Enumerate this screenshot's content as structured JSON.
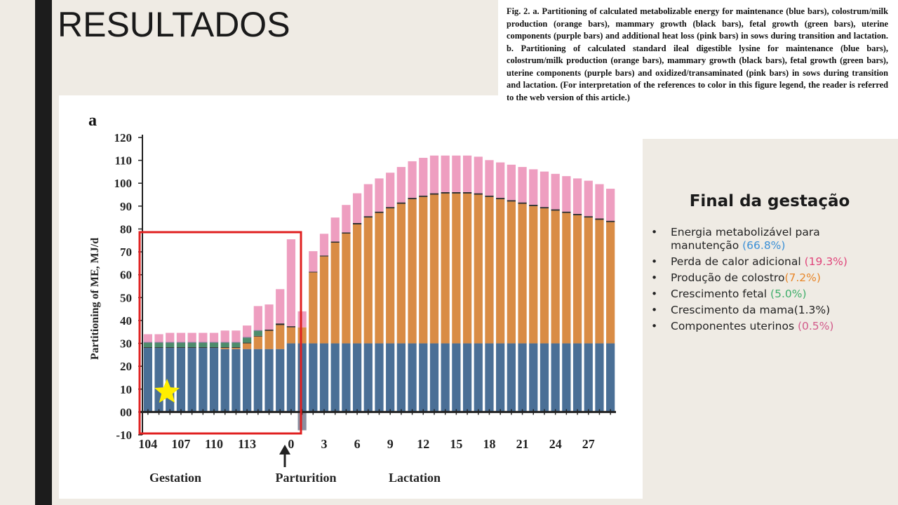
{
  "slide": {
    "title": "RESULTADOS"
  },
  "caption": {
    "text": "Fig. 2. a. Partitioning of calculated metabolizable energy for maintenance (blue bars), colostrum/milk production (orange bars), mammary growth (black bars), fetal growth (green bars), uterine components (purple bars) and additional heat loss (pink bars) in sows during transition and lactation. b. Partitioning of calculated standard ileal digestible lysine for maintenance (blue bars), colostrum/milk production (orange bars), mammary growth (black bars), fetal growth (green bars), uterine components (purple bars) and oxidized/transaminated (pink bars) in sows during transition and lactation. (For interpretation of the references to color in this figure legend, the reader is referred to the web version of this article.)"
  },
  "summary": {
    "title": "Final da gestação",
    "items": [
      {
        "label": "Energia metabolizável para manutenção ",
        "value": "(66.8%)",
        "color": "#3a8fd6"
      },
      {
        "label": "Perda de calor adicional ",
        "value": "(19.3%)",
        "color": "#e0457a"
      },
      {
        "label": "Produção de colostro",
        "value": "(7.2%)",
        "color": "#e8872a"
      },
      {
        "label": "Crescimento fetal ",
        "value": "(5.0%)",
        "color": "#3fae6a"
      },
      {
        "label": "Crescimento da mama",
        "value": "(1.3%)",
        "color": "#222222"
      },
      {
        "label": "Componentes uterinos ",
        "value": "(0.5%)",
        "color": "#d25a8a"
      }
    ],
    "bullet": "•"
  },
  "chart_data": {
    "type": "bar",
    "stacked": true,
    "panel_label": "a",
    "ylabel": "Partitioning of ME, MJ/d",
    "ylim": [
      -10,
      120
    ],
    "yticks": [
      "-10",
      "00",
      "10",
      "20",
      "30",
      "40",
      "50",
      "60",
      "70",
      "80",
      "90",
      "100",
      "110",
      "120"
    ],
    "xtick_labels": [
      "104",
      "107",
      "110",
      "113",
      "0",
      "3",
      "6",
      "9",
      "12",
      "15",
      "18",
      "21",
      "24",
      "27"
    ],
    "xtick_indices": [
      0,
      3,
      6,
      9,
      13,
      16,
      19,
      22,
      25,
      28,
      31,
      34,
      37,
      40
    ],
    "period_labels": [
      "Gestation",
      "Parturition",
      "Lactation"
    ],
    "colors": {
      "maintenance": "#4a6f96",
      "milk": "#d98c45",
      "mammary": "#2b2b2b",
      "fetal": "#4d8c6c",
      "uterine": "#8a6fa0",
      "heat": "#ee9ec0",
      "highlight_box": "#e02020",
      "star": "#ffee00"
    },
    "series": [
      {
        "key": "maintenance",
        "values": [
          28,
          28,
          28,
          28,
          28,
          28,
          28,
          27.5,
          27.5,
          27.5,
          27.5,
          27.5,
          27.5,
          30,
          30,
          30,
          30,
          30,
          30,
          30,
          30,
          30,
          30,
          30,
          30,
          30,
          30,
          30,
          30,
          30,
          30,
          30,
          30,
          30,
          30,
          30,
          30,
          30,
          30,
          30,
          30,
          30,
          30
        ]
      },
      {
        "key": "milk",
        "values": [
          0,
          0,
          0,
          0,
          0,
          0,
          0,
          0.5,
          0.5,
          2.5,
          5.5,
          8,
          10.5,
          7,
          7,
          31,
          38,
          44,
          48,
          52,
          55,
          57,
          59,
          61,
          63,
          64,
          65,
          65.5,
          65.5,
          65.5,
          65,
          64,
          63,
          62,
          61,
          60,
          59,
          58,
          57,
          56,
          55,
          54,
          53
        ]
      },
      {
        "key": "mammary",
        "values": [
          0.3,
          0.3,
          0.3,
          0.3,
          0.3,
          0.3,
          0.3,
          0.3,
          0.3,
          0.3,
          0.3,
          0.5,
          0.7,
          0.5,
          0,
          0.3,
          0.4,
          0.5,
          0.5,
          0.6,
          0.6,
          0.6,
          0.6,
          0.6,
          0.6,
          0.6,
          0.6,
          0.6,
          0.6,
          0.6,
          0.6,
          0.6,
          0.6,
          0.6,
          0.6,
          0.6,
          0.6,
          0.6,
          0.6,
          0.6,
          0.6,
          0.6,
          0.6
        ]
      },
      {
        "key": "fetal",
        "values": [
          2,
          2,
          2,
          2,
          2,
          2,
          2,
          2,
          2,
          2.2,
          2.2,
          0,
          0,
          0,
          0,
          0,
          0,
          0,
          0,
          0,
          0,
          0,
          0,
          0,
          0,
          0,
          0,
          0,
          0,
          0,
          0,
          0,
          0,
          0,
          0,
          0,
          0,
          0,
          0,
          0,
          0,
          0,
          0
        ]
      },
      {
        "key": "uterine",
        "values": [
          0.3,
          0.3,
          0.3,
          0.3,
          0.3,
          0.3,
          0.3,
          0.3,
          0.3,
          0.3,
          0.3,
          0,
          0,
          0,
          0,
          0,
          0,
          0,
          0,
          0,
          0,
          0,
          0,
          0,
          0,
          0,
          0,
          0,
          0,
          0,
          0,
          0,
          0,
          0,
          0,
          0,
          0,
          0,
          0,
          0,
          0,
          0,
          0
        ]
      },
      {
        "key": "heat",
        "values": [
          3.4,
          3.4,
          4,
          4,
          4,
          4,
          4,
          5,
          5,
          5,
          10.5,
          11,
          15,
          38,
          7,
          9,
          9.5,
          10.5,
          12,
          13,
          14,
          14.5,
          15,
          15.5,
          16,
          16.5,
          16.5,
          16,
          16,
          16,
          16,
          15.5,
          15.5,
          15.5,
          15.5,
          15.5,
          15.5,
          15.5,
          15.5,
          15.5,
          15.5,
          15,
          14
        ]
      }
    ],
    "negative": {
      "key": "maintenance",
      "index": 14,
      "value": -8
    }
  }
}
